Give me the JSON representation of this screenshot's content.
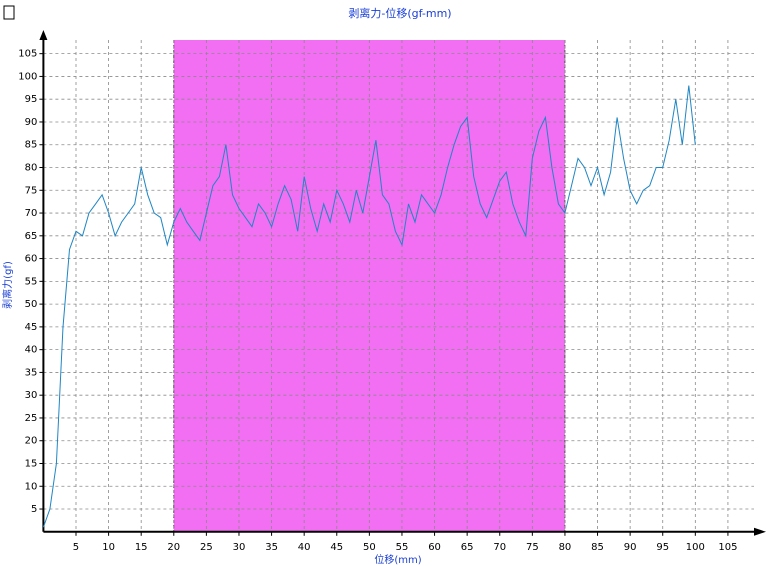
{
  "chart_data": {
    "type": "line",
    "title": "剥离力-位移(gf-mm)",
    "x_label": "位移(mm)",
    "y_label": "剥离力(gf)",
    "highlight": [
      20,
      80
    ],
    "highlight_color": "#f26ef2",
    "x": [
      0,
      1,
      2,
      3,
      4,
      5,
      6,
      7,
      8,
      9,
      10,
      11,
      12,
      13,
      14,
      15,
      16,
      17,
      18,
      19,
      20,
      21,
      22,
      23,
      24,
      25,
      26,
      27,
      28,
      29,
      30,
      31,
      32,
      33,
      34,
      35,
      36,
      37,
      38,
      39,
      40,
      41,
      42,
      43,
      44,
      45,
      46,
      47,
      48,
      49,
      50,
      51,
      52,
      53,
      54,
      55,
      56,
      57,
      58,
      59,
      60,
      61,
      62,
      63,
      64,
      65,
      66,
      67,
      68,
      69,
      70,
      71,
      72,
      73,
      74,
      75,
      76,
      77,
      78,
      79,
      80,
      81,
      82,
      83,
      84,
      85,
      86,
      87,
      88,
      89,
      90,
      91,
      92,
      93,
      94,
      95,
      96,
      97,
      98,
      99,
      100
    ],
    "series": [
      {
        "name": "剥离力",
        "color": "#1f86c4",
        "values": [
          1,
          5,
          15,
          45,
          62,
          66,
          65,
          70,
          72,
          74,
          70,
          65,
          68,
          70,
          72,
          80,
          74,
          70,
          69,
          63,
          68,
          71,
          68,
          66,
          64,
          70,
          76,
          78,
          85,
          74,
          71,
          69,
          67,
          72,
          70,
          67,
          72,
          76,
          73,
          66,
          78,
          71,
          66,
          72,
          68,
          75,
          72,
          68,
          75,
          70,
          78,
          86,
          74,
          72,
          66,
          63,
          72,
          68,
          74,
          72,
          70,
          74,
          80,
          85,
          89,
          91,
          78,
          72,
          69,
          73,
          77,
          79,
          72,
          68,
          65,
          82,
          88,
          91,
          80,
          72,
          70,
          76,
          82,
          80,
          76,
          80,
          74,
          79,
          91,
          82,
          75,
          72,
          75,
          76,
          80,
          80,
          86,
          95,
          85,
          98,
          85
        ]
      }
    ],
    "xlim": [
      0,
      109
    ],
    "ylim": [
      0,
      108
    ],
    "xticks": [
      5,
      10,
      15,
      20,
      25,
      30,
      35,
      40,
      45,
      50,
      55,
      60,
      65,
      70,
      75,
      80,
      85,
      90,
      95,
      100,
      105
    ],
    "yticks": [
      5,
      10,
      15,
      20,
      25,
      30,
      35,
      40,
      45,
      50,
      55,
      60,
      65,
      70,
      75,
      80,
      85,
      90,
      95,
      100,
      105
    ],
    "grid": true
  }
}
